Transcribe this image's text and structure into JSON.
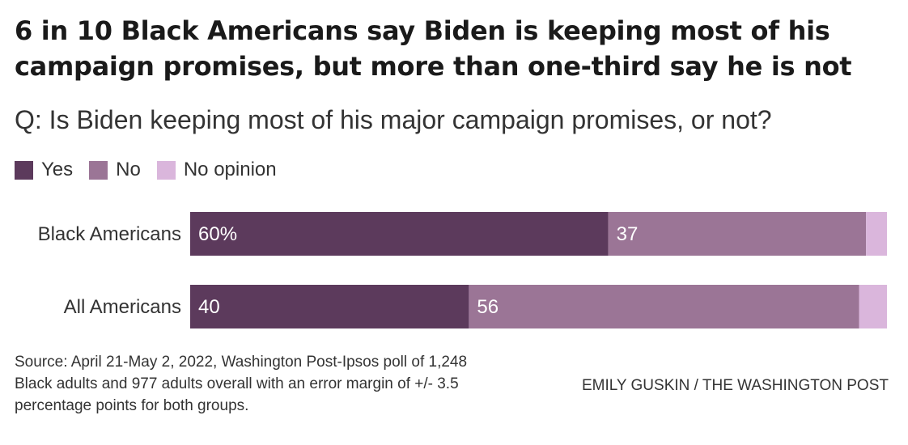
{
  "title_lines": [
    "6 in 10 Black Americans say Biden is keeping most of his",
    "campaign promises, but more than one-third say he is not"
  ],
  "subtitle": "Q: Is Biden keeping most of his major campaign promises, or not?",
  "legend": [
    {
      "label": "Yes",
      "color": "#5c3a5c"
    },
    {
      "label": "No",
      "color": "#9b7596"
    },
    {
      "label": "No opinion",
      "color": "#dab6dc"
    }
  ],
  "chart_data": {
    "type": "bar",
    "orientation": "horizontal",
    "stacked": true,
    "categories": [
      "Black Americans",
      "All Americans"
    ],
    "series": [
      {
        "name": "Yes",
        "values": [
          60,
          40
        ],
        "labels": [
          "60%",
          "40"
        ],
        "color": "#5c3a5c"
      },
      {
        "name": "No",
        "values": [
          37,
          56
        ],
        "labels": [
          "37",
          "56"
        ],
        "color": "#9b7596"
      },
      {
        "name": "No opinion",
        "values": [
          3,
          4
        ],
        "labels": [
          "",
          ""
        ],
        "color": "#dab6dc"
      }
    ],
    "xlim": [
      0,
      100
    ]
  },
  "footer": {
    "source_lines": [
      "Source: April 21-May 2, 2022, Washington Post-Ipsos poll of 1,248",
      "Black adults and 977 adults overall with an error margin of +/- 3.5",
      "percentage points for both groups."
    ],
    "credit": "EMILY GUSKIN / THE WASHINGTON POST"
  }
}
